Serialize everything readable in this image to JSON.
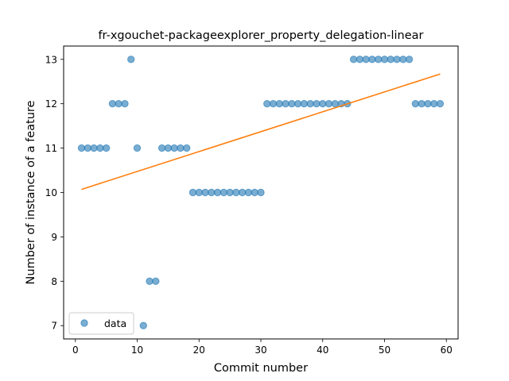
{
  "chart_data": {
    "type": "scatter",
    "title": "fr-xgouchet-packageexplorer_property_delegation-linear",
    "xlabel": "Commit number",
    "ylabel": "Number of instance of a feature",
    "xlim": [
      -1.9,
      61.9
    ],
    "ylim": [
      6.7,
      13.3
    ],
    "xticks": [
      0,
      10,
      20,
      30,
      40,
      50,
      60
    ],
    "yticks": [
      7,
      8,
      9,
      10,
      11,
      12,
      13
    ],
    "grid": false,
    "legend_position": "bottom-left",
    "series": [
      {
        "name": "data",
        "kind": "scatter",
        "color": "#1f77b4",
        "x": [
          1,
          2,
          3,
          4,
          5,
          6,
          7,
          8,
          9,
          10,
          11,
          12,
          13,
          14,
          15,
          16,
          17,
          18,
          19,
          20,
          21,
          22,
          23,
          24,
          25,
          26,
          27,
          28,
          29,
          30,
          31,
          32,
          33,
          34,
          35,
          36,
          37,
          38,
          39,
          40,
          41,
          42,
          43,
          44,
          45,
          46,
          47,
          48,
          49,
          50,
          51,
          52,
          53,
          54,
          55,
          56,
          57,
          58,
          59
        ],
        "y": [
          11,
          11,
          11,
          11,
          11,
          12,
          12,
          12,
          13,
          11,
          7,
          8,
          8,
          11,
          11,
          11,
          11,
          11,
          10,
          10,
          10,
          10,
          10,
          10,
          10,
          10,
          10,
          10,
          10,
          10,
          12,
          12,
          12,
          12,
          12,
          12,
          12,
          12,
          12,
          12,
          12,
          12,
          12,
          12,
          13,
          13,
          13,
          13,
          13,
          13,
          13,
          13,
          13,
          13,
          12,
          12,
          12,
          12,
          12
        ]
      },
      {
        "kind": "line",
        "color": "#ff7f0e",
        "x": [
          1,
          59
        ],
        "y": [
          10.07,
          12.67
        ]
      }
    ]
  }
}
